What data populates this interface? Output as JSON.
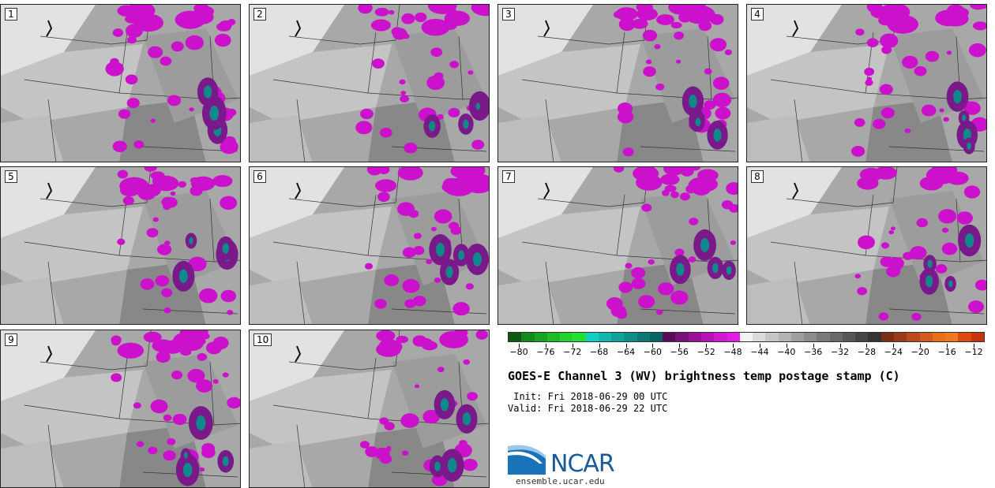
{
  "panels": [
    {
      "label": "1"
    },
    {
      "label": "2"
    },
    {
      "label": "3"
    },
    {
      "label": "4"
    },
    {
      "label": "5"
    },
    {
      "label": "6"
    },
    {
      "label": "7"
    },
    {
      "label": "8"
    },
    {
      "label": "9"
    },
    {
      "label": "10"
    }
  ],
  "colorbar": {
    "colors": [
      "#0a5a14",
      "#118a1c",
      "#17a321",
      "#1dbb28",
      "#22d22f",
      "#24e034",
      "#12cfc4",
      "#10b8b0",
      "#0fa39c",
      "#0d8e88",
      "#0b7874",
      "#066562",
      "#5a0b5a",
      "#7a0f7a",
      "#990f99",
      "#b512b5",
      "#cf18cf",
      "#e31ce3",
      "#f2f2f2",
      "#dcdcdc",
      "#c6c6c6",
      "#b2b2b2",
      "#9e9e9e",
      "#8c8c8c",
      "#7a7a7a",
      "#686868",
      "#565656",
      "#444444",
      "#333333",
      "#7a2e14",
      "#9a3a16",
      "#b84a1c",
      "#d25a1e",
      "#e86e1a",
      "#f07820",
      "#dc4a10",
      "#c8320c"
    ],
    "tick_labels": [
      "−80",
      "−76",
      "−72",
      "−68",
      "−64",
      "−60",
      "−56",
      "−52",
      "−48",
      "−44",
      "−40",
      "−36",
      "−32",
      "−28",
      "−24",
      "−20",
      "−16",
      "−12"
    ]
  },
  "title": "GOES-E Channel 3 (WV) brightness temp postage stamp (C)",
  "init": " Init: Fri 2018-06-29 00 UTC",
  "valid": "Valid: Fri 2018-06-29 22 UTC",
  "logo_text": "NCAR",
  "site": "ensemble.ucar.edu",
  "colors": {
    "magenta": "#cc11cc",
    "purple": "#7a1a8a",
    "teal": "#0f8a8a",
    "gray_light": "#e0e0e0",
    "gray_dark": "#8a8a8a"
  }
}
